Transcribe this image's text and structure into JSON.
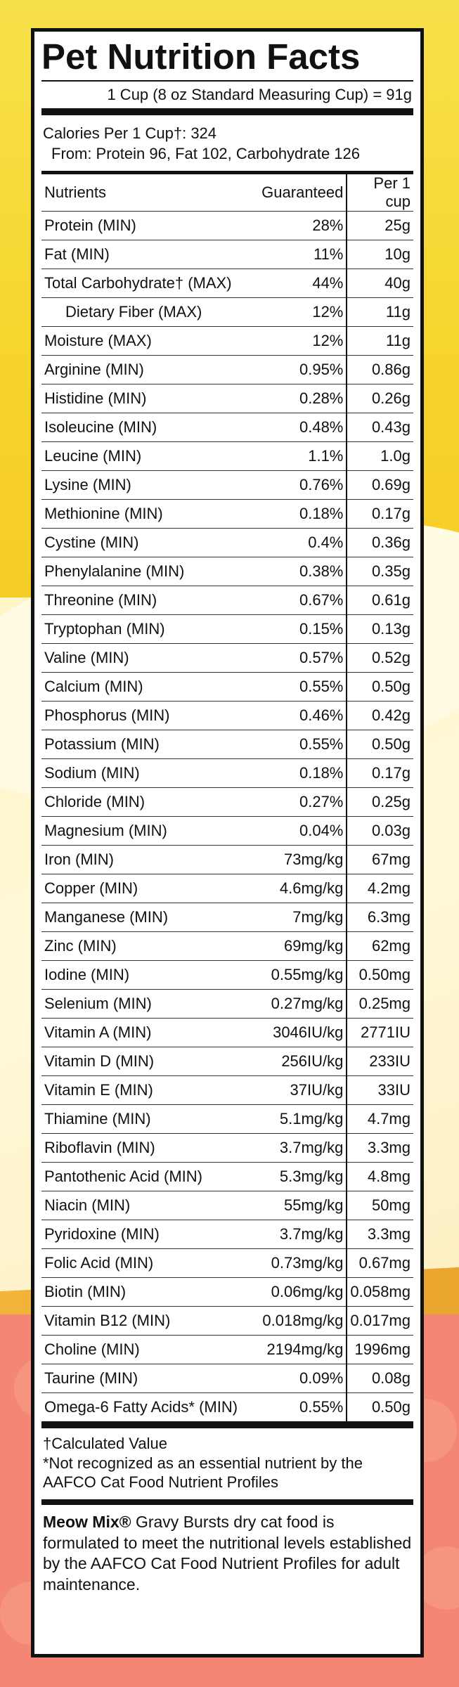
{
  "panel": {
    "title": "Pet Nutrition Facts",
    "serving": "1 Cup (8 oz Standard Measuring Cup) = 91g",
    "calories_label": "Calories Per 1 Cup†: 324",
    "calories_from": "From: Protein 96, Fat  102, Carbohydrate 126",
    "headers": {
      "nutrients": "Nutrients",
      "guaranteed": "Guaranteed",
      "per_cup": "Per 1 cup"
    },
    "rows": [
      {
        "name": "Protein (MIN)",
        "guaranteed": "28%",
        "per_cup": "25g"
      },
      {
        "name": "Fat (MIN)",
        "guaranteed": "11%",
        "per_cup": "10g"
      },
      {
        "name": "Total Carbohydrate† (MAX)",
        "guaranteed": "44%",
        "per_cup": "40g"
      },
      {
        "name": "Dietary Fiber (MAX)",
        "guaranteed": "12%",
        "per_cup": "11g"
      },
      {
        "name": "Moisture (MAX)",
        "guaranteed": "12%",
        "per_cup": "11g"
      },
      {
        "name": "Arginine (MIN)",
        "guaranteed": "0.95%",
        "per_cup": "0.86g"
      },
      {
        "name": "Histidine (MIN)",
        "guaranteed": "0.28%",
        "per_cup": "0.26g"
      },
      {
        "name": "Isoleucine (MIN)",
        "guaranteed": "0.48%",
        "per_cup": "0.43g"
      },
      {
        "name": "Leucine (MIN)",
        "guaranteed": "1.1%",
        "per_cup": "1.0g"
      },
      {
        "name": "Lysine (MIN)",
        "guaranteed": "0.76%",
        "per_cup": "0.69g"
      },
      {
        "name": "Methionine (MIN)",
        "guaranteed": "0.18%",
        "per_cup": "0.17g"
      },
      {
        "name": "Cystine (MIN)",
        "guaranteed": "0.4%",
        "per_cup": "0.36g"
      },
      {
        "name": "Phenylalanine (MIN)",
        "guaranteed": "0.38%",
        "per_cup": "0.35g"
      },
      {
        "name": "Threonine (MIN)",
        "guaranteed": "0.67%",
        "per_cup": "0.61g"
      },
      {
        "name": "Tryptophan (MIN)",
        "guaranteed": "0.15%",
        "per_cup": "0.13g"
      },
      {
        "name": "Valine (MIN)",
        "guaranteed": "0.57%",
        "per_cup": "0.52g"
      },
      {
        "name": "Calcium (MIN)",
        "guaranteed": "0.55%",
        "per_cup": "0.50g"
      },
      {
        "name": "Phosphorus (MIN)",
        "guaranteed": "0.46%",
        "per_cup": "0.42g"
      },
      {
        "name": "Potassium (MIN)",
        "guaranteed": "0.55%",
        "per_cup": "0.50g"
      },
      {
        "name": "Sodium (MIN)",
        "guaranteed": "0.18%",
        "per_cup": "0.17g"
      },
      {
        "name": "Chloride (MIN)",
        "guaranteed": "0.27%",
        "per_cup": "0.25g"
      },
      {
        "name": "Magnesium (MIN)",
        "guaranteed": "0.04%",
        "per_cup": "0.03g"
      },
      {
        "name": "Iron (MIN)",
        "guaranteed": "73mg/kg",
        "per_cup": "67mg"
      },
      {
        "name": "Copper (MIN)",
        "guaranteed": "4.6mg/kg",
        "per_cup": "4.2mg"
      },
      {
        "name": "Manganese (MIN)",
        "guaranteed": "7mg/kg",
        "per_cup": "6.3mg"
      },
      {
        "name": "Zinc (MIN)",
        "guaranteed": "69mg/kg",
        "per_cup": "62mg"
      },
      {
        "name": "Iodine (MIN)",
        "guaranteed": "0.55mg/kg",
        "per_cup": "0.50mg"
      },
      {
        "name": "Selenium (MIN)",
        "guaranteed": "0.27mg/kg",
        "per_cup": "0.25mg"
      },
      {
        "name": "Vitamin A (MIN)",
        "guaranteed": "3046IU/kg",
        "per_cup": "2771IU"
      },
      {
        "name": "Vitamin D (MIN)",
        "guaranteed": "256IU/kg",
        "per_cup": "233IU"
      },
      {
        "name": "Vitamin E (MIN)",
        "guaranteed": "37IU/kg",
        "per_cup": "33IU"
      },
      {
        "name": "Thiamine (MIN)",
        "guaranteed": "5.1mg/kg",
        "per_cup": "4.7mg"
      },
      {
        "name": "Riboflavin (MIN)",
        "guaranteed": "3.7mg/kg",
        "per_cup": "3.3mg"
      },
      {
        "name": "Pantothenic Acid (MIN)",
        "guaranteed": "5.3mg/kg",
        "per_cup": "4.8mg"
      },
      {
        "name": "Niacin (MIN)",
        "guaranteed": "55mg/kg",
        "per_cup": "50mg"
      },
      {
        "name": "Pyridoxine (MIN)",
        "guaranteed": "3.7mg/kg",
        "per_cup": "3.3mg"
      },
      {
        "name": "Folic Acid (MIN)",
        "guaranteed": "0.73mg/kg",
        "per_cup": "0.67mg"
      },
      {
        "name": "Biotin (MIN)",
        "guaranteed": "0.06mg/kg",
        "per_cup": "0.058mg"
      },
      {
        "name": "Vitamin B12 (MIN)",
        "guaranteed": "0.018mg/kg",
        "per_cup": "0.017mg"
      },
      {
        "name": "Choline (MIN)",
        "guaranteed": "2194mg/kg",
        "per_cup": "1996mg"
      },
      {
        "name": "Taurine (MIN)",
        "guaranteed": "0.09%",
        "per_cup": "0.08g"
      },
      {
        "name": "Omega-6 Fatty Acids* (MIN)",
        "guaranteed": "0.55%",
        "per_cup": "0.50g"
      }
    ],
    "footnote_calc": "†Calculated Value",
    "footnote_star": "*Not recognized as an essential nutrient by the AAFCO Cat Food Nutrient Profiles",
    "brand": "Meow Mix®",
    "statement": " Gravy Bursts dry cat food is formulated to meet the nutritional levels established by the AAFCO Cat Food Nutrient Profiles for adult maintenance."
  }
}
